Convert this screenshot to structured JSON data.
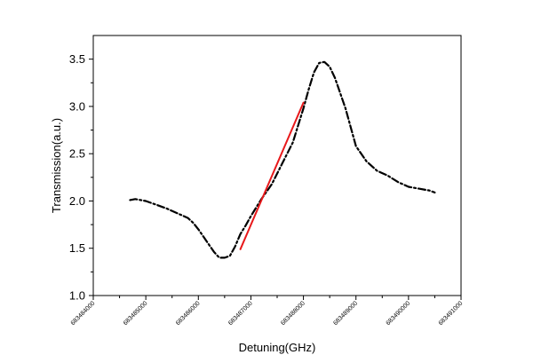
{
  "chart_data": {
    "type": "line",
    "xlabel": "Detuning(GHz)",
    "ylabel": "Transmission(a.u.)",
    "xlim": [
      683484000,
      683491000
    ],
    "ylim": [
      1.0,
      3.75
    ],
    "x_ticks": [
      683484000,
      683485000,
      683486000,
      683487000,
      683488000,
      683489000,
      683490000,
      683491000
    ],
    "x_tick_labels": [
      "683484000",
      "683485000",
      "683486000",
      "683487000",
      "683488000",
      "683489000",
      "683490000",
      "683491000"
    ],
    "y_ticks": [
      1.0,
      1.5,
      2.0,
      2.5,
      3.0,
      3.5
    ],
    "y_tick_labels": [
      "1.0",
      "1.5",
      "2.0",
      "2.5",
      "3.0",
      "3.5"
    ],
    "grid": false,
    "series": [
      {
        "style": "dash-dot",
        "color": "#000000",
        "x": [
          683484700,
          683484800,
          683484900,
          683485000,
          683485200,
          683485400,
          683485600,
          683485800,
          683485900,
          683486000,
          683486100,
          683486200,
          683486300,
          683486400,
          683486500,
          683486600,
          683486700,
          683486800,
          683486900,
          683487000,
          683487200,
          683487400,
          683487600,
          683487800,
          683488000,
          683488100,
          683488200,
          683488300,
          683488400,
          683488500,
          683488600,
          683488800,
          683489000,
          683489200,
          683489400,
          683489600,
          683489800,
          683490000,
          683490200,
          683490400,
          683490500
        ],
        "y": [
          2.01,
          2.02,
          2.01,
          2.0,
          1.96,
          1.92,
          1.87,
          1.82,
          1.77,
          1.7,
          1.62,
          1.54,
          1.46,
          1.4,
          1.4,
          1.42,
          1.52,
          1.65,
          1.74,
          1.84,
          2.02,
          2.18,
          2.4,
          2.62,
          2.98,
          3.18,
          3.36,
          3.46,
          3.47,
          3.42,
          3.3,
          2.98,
          2.58,
          2.42,
          2.32,
          2.27,
          2.2,
          2.15,
          2.13,
          2.11,
          2.09
        ]
      },
      {
        "style": "solid",
        "color": "#e8191b",
        "x": [
          683486800,
          683488000
        ],
        "y": [
          1.49,
          3.04
        ]
      }
    ]
  }
}
